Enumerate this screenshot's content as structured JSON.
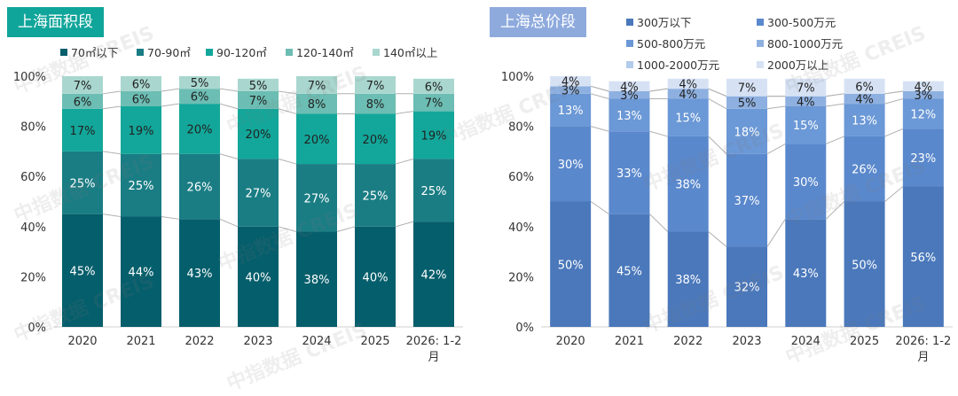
{
  "watermark": "中指数据 CREIS",
  "chart_data": [
    {
      "type": "bar",
      "stacked": true,
      "percent": true,
      "title": "上海面积段",
      "categories": [
        "2020",
        "2021",
        "2022",
        "2023",
        "2024",
        "2025",
        "2026: 1-2月"
      ],
      "series": [
        {
          "name": "70㎡以下",
          "color": "#055e6b",
          "values": [
            45,
            44,
            43,
            40,
            38,
            40,
            42
          ]
        },
        {
          "name": "70-90㎡",
          "color": "#1a7d84",
          "values": [
            25,
            25,
            26,
            27,
            27,
            25,
            25
          ]
        },
        {
          "name": "90-120㎡",
          "color": "#12a79a",
          "values": [
            17,
            19,
            20,
            20,
            20,
            20,
            19
          ]
        },
        {
          "name": "120-140㎡",
          "color": "#6cbdb3",
          "values": [
            6,
            6,
            6,
            7,
            8,
            8,
            7
          ]
        },
        {
          "name": "140㎡以上",
          "color": "#a9d7cf",
          "values": [
            7,
            6,
            5,
            5,
            7,
            7,
            6
          ]
        }
      ],
      "ylim": [
        0,
        100
      ],
      "yticks": [
        "0%",
        "20%",
        "40%",
        "60%",
        "80%",
        "100%"
      ],
      "xlabel": "",
      "ylabel": "",
      "legend": "top",
      "grid": false
    },
    {
      "type": "bar",
      "stacked": true,
      "percent": true,
      "title": "上海总价段",
      "categories": [
        "2020",
        "2021",
        "2022",
        "2023",
        "2024",
        "2025",
        "2026: 1-2月"
      ],
      "series": [
        {
          "name": "300万以下",
          "color": "#4a78bb",
          "values": [
            50,
            45,
            38,
            32,
            43,
            50,
            56
          ]
        },
        {
          "name": "300-500万元",
          "color": "#5a88cc",
          "values": [
            30,
            33,
            38,
            37,
            30,
            26,
            23
          ]
        },
        {
          "name": "500-800万元",
          "color": "#6b98d6",
          "values": [
            13,
            13,
            15,
            18,
            15,
            13,
            12
          ]
        },
        {
          "name": "800-1000万元",
          "color": "#8eb0e0",
          "values": [
            3,
            3,
            4,
            5,
            4,
            4,
            3
          ]
        },
        {
          "name": "1000-2000万元",
          "color": "#b3cbeb",
          "values": [
            0,
            0,
            0,
            0,
            0,
            0,
            0
          ]
        },
        {
          "name": "2000万以上",
          "color": "#d6e2f4",
          "values": [
            4,
            4,
            4,
            7,
            7,
            6,
            4
          ]
        }
      ],
      "ylim": [
        0,
        100
      ],
      "yticks": [
        "0%",
        "20%",
        "40%",
        "60%",
        "80%",
        "100%"
      ],
      "xlabel": "",
      "ylabel": "",
      "legend": "top-right",
      "grid": false
    }
  ]
}
